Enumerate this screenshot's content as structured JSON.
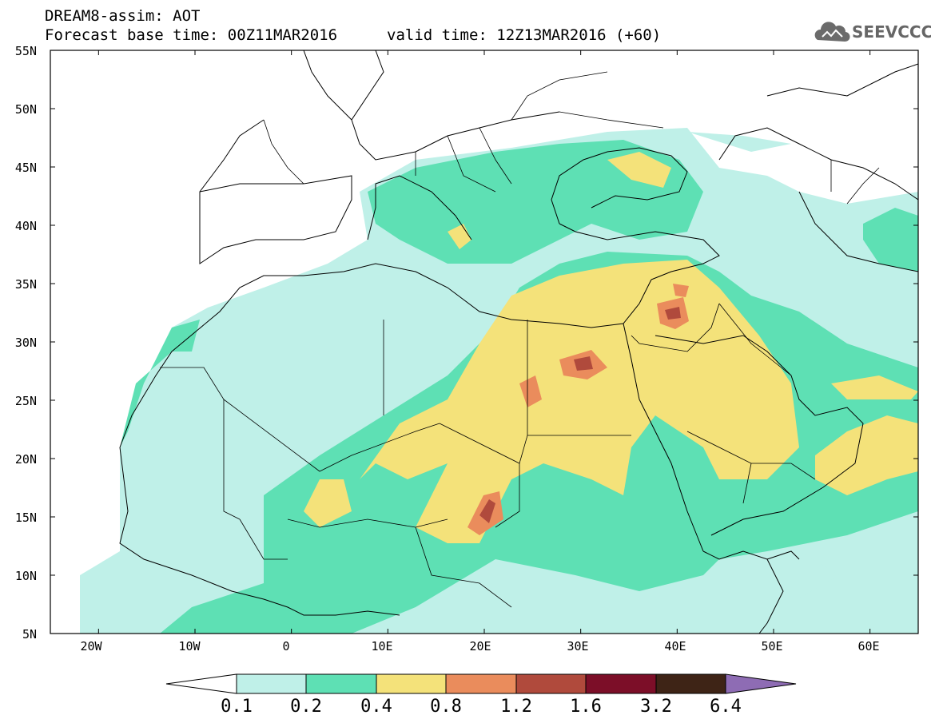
{
  "header": {
    "title": "DREAM8-assim: AOT",
    "base_time": "Forecast base time: 00Z11MAR2016",
    "valid_time": "valid time: 12Z13MAR2016 (+60)",
    "logo_text": "SEEVCCC"
  },
  "map": {
    "variable": "AOT",
    "lat_range": [
      5,
      55
    ],
    "lon_range": [
      -25,
      65
    ],
    "lat_labels": [
      "55N",
      "50N",
      "45N",
      "40N",
      "35N",
      "30N",
      "25N",
      "20N",
      "15N",
      "10N",
      "5N"
    ],
    "lon_labels": [
      "20W",
      "10W",
      "0",
      "10E",
      "20E",
      "30E",
      "40E",
      "50E",
      "60E"
    ]
  },
  "legend": {
    "labels": [
      "0.1",
      "0.2",
      "0.4",
      "0.8",
      "1.2",
      "1.6",
      "3.2",
      "6.4"
    ],
    "colors": [
      "#ffffff",
      "#bff0e8",
      "#5ee0b4",
      "#f4e27a",
      "#ea8c5c",
      "#b04a3c",
      "#7c0e28",
      "#3e2416",
      "#8e6cb4"
    ]
  }
}
